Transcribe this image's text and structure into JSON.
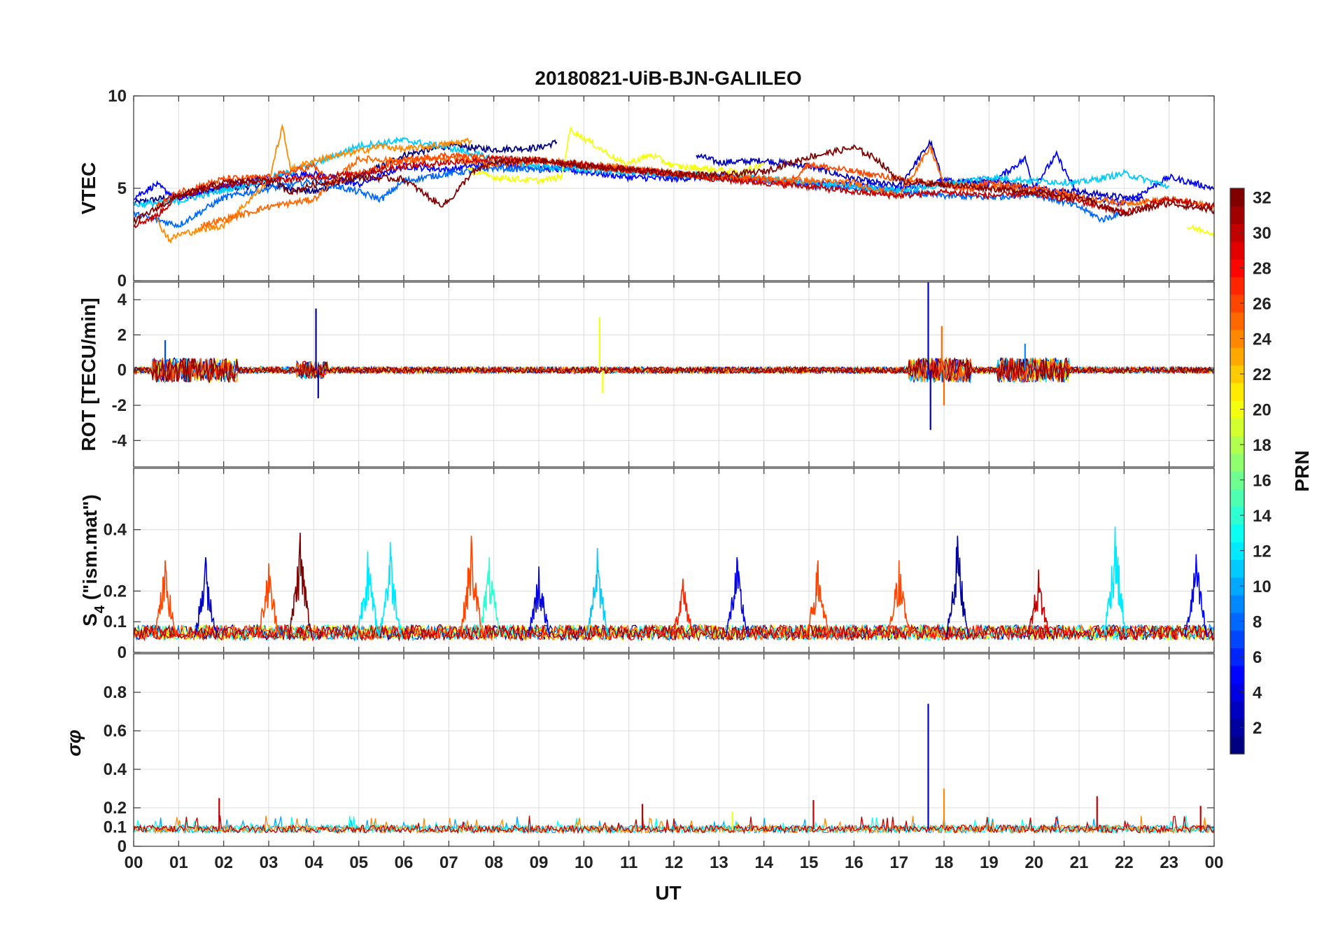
{
  "chart_data": {
    "type": "line",
    "title": "20180821-UiB-BJN-GALILEO",
    "xlabel": "UT",
    "xlim": [
      0,
      24
    ],
    "xticks": [
      "00",
      "01",
      "02",
      "03",
      "04",
      "05",
      "06",
      "07",
      "08",
      "09",
      "10",
      "11",
      "12",
      "13",
      "14",
      "15",
      "16",
      "17",
      "18",
      "19",
      "20",
      "21",
      "22",
      "23",
      "00"
    ],
    "panels": [
      {
        "id": "vtec",
        "ylabel": "VTEC",
        "ylim": [
          0,
          10
        ],
        "yticks": [
          "0",
          "5",
          "10"
        ],
        "ytick_values": [
          0,
          5,
          10
        ],
        "series": [
          {
            "prn": 1,
            "x": [
              0,
              1,
              2,
              3,
              4,
              5,
              6,
              7,
              8,
              9,
              9.4
            ],
            "y": [
              4.2,
              4.6,
              5,
              5.2,
              4.8,
              5.6,
              6.8,
              7.3,
              7.1,
              7.2,
              7.5
            ]
          },
          {
            "prn": 3,
            "x": [
              12.5,
              13,
              14,
              15,
              16,
              17,
              17.7,
              18,
              19,
              20,
              21,
              22,
              22.5
            ],
            "y": [
              6.8,
              6.4,
              6.5,
              6.2,
              5.5,
              5.1,
              7.5,
              5.2,
              5.5,
              5.0,
              4.8,
              4.5,
              4.4
            ]
          },
          {
            "prn": 5,
            "x": [
              0,
              0.5,
              1,
              2,
              3,
              4,
              5,
              6,
              7,
              8,
              9,
              10,
              11,
              12,
              13,
              14,
              15,
              16,
              17,
              18,
              19,
              19.8,
              20,
              20.5,
              21,
              22,
              23,
              24
            ],
            "y": [
              4.5,
              5.2,
              4.4,
              5.1,
              5.6,
              5.8,
              5.2,
              6.2,
              6.0,
              6.4,
              6.1,
              5.9,
              5.6,
              5.5,
              5.7,
              5.4,
              5.3,
              5.2,
              5.0,
              5.4,
              5.2,
              6.6,
              5.1,
              6.8,
              4.5,
              4.2,
              5.6,
              5.0
            ]
          },
          {
            "prn": 8,
            "x": [
              0,
              1,
              2,
              3,
              4,
              5,
              5.5,
              6,
              7,
              8,
              9,
              10,
              11,
              12,
              13,
              14,
              15,
              16,
              17,
              18,
              19,
              20,
              21,
              21.5,
              22
            ],
            "y": [
              3.6,
              3.0,
              4.5,
              5.0,
              5.4,
              4.8,
              4.4,
              5.4,
              5.8,
              6.1,
              6.0,
              6.2,
              5.9,
              5.7,
              5.6,
              5.4,
              5.2,
              5.0,
              4.8,
              4.6,
              4.5,
              4.7,
              4.0,
              3.3,
              3.7
            ]
          },
          {
            "prn": 11,
            "x": [
              0,
              1,
              2,
              3,
              4,
              5,
              6,
              7,
              8,
              9,
              10,
              11,
              12,
              13,
              14,
              15,
              16,
              17,
              18,
              19,
              20,
              21,
              22,
              23
            ],
            "y": [
              4.1,
              4.3,
              4.9,
              5.5,
              6.3,
              7.3,
              7.6,
              7.2,
              6.6,
              6.2,
              6.0,
              5.9,
              5.8,
              5.6,
              5.5,
              5.3,
              5.1,
              4.9,
              5.2,
              5.6,
              5.4,
              5.3,
              5.8,
              5.1
            ]
          },
          {
            "prn": 20,
            "x": [
              7.4,
              8,
              9,
              9.5,
              9.7,
              10.9,
              11.5,
              12,
              13,
              13.5,
              14
            ],
            "y": [
              6.0,
              5.6,
              5.4,
              5.6,
              8.2,
              6.3,
              6.8,
              6.2,
              6.0,
              5.8,
              6.4
            ]
          },
          {
            "prn": 20,
            "x": [
              23.4,
              24
            ],
            "y": [
              2.9,
              2.6
            ]
          },
          {
            "prn": 24,
            "x": [
              0.5,
              0.8,
              1,
              2,
              3,
              3.3,
              3.5,
              4,
              5,
              5.5,
              6,
              7,
              7.5
            ],
            "y": [
              3.3,
              2.2,
              2.5,
              3.0,
              5.4,
              8.3,
              6.0,
              6.5,
              7.0,
              7.3,
              7.1,
              7.4,
              7.6
            ]
          },
          {
            "prn": 25,
            "x": [
              1.5,
              2,
              3,
              4,
              4.5,
              5,
              6,
              7,
              8,
              9,
              10,
              11,
              12,
              13,
              14,
              15,
              16,
              17,
              17.7,
              18,
              19,
              20,
              21,
              22,
              23,
              24
            ],
            "y": [
              3.0,
              3.3,
              4.0,
              4.4,
              5.5,
              6.6,
              6.5,
              6.6,
              6.3,
              6.5,
              6.3,
              6.1,
              5.8,
              5.6,
              5.5,
              5.4,
              5.3,
              4.6,
              7.2,
              5.2,
              5.1,
              4.8,
              4.5,
              4.2,
              4.4,
              4.0
            ]
          },
          {
            "prn": 26,
            "x": [
              0.5,
              1,
              2,
              3,
              4,
              4.4,
              5,
              6,
              7,
              8,
              9,
              10,
              11,
              12,
              13,
              14,
              14.5,
              15,
              16,
              17,
              18,
              18.5,
              19,
              20,
              21
            ],
            "y": [
              4.0,
              4.8,
              5.5,
              5.6,
              6.2,
              5.2,
              5.8,
              6.5,
              6.8,
              6.6,
              6.5,
              6.2,
              6.0,
              5.8,
              5.6,
              5.5,
              5.2,
              6.3,
              5.9,
              5.5,
              5.2,
              4.9,
              5.3,
              5.0,
              4.7
            ]
          },
          {
            "prn": 30,
            "x": [
              0,
              0.5,
              1,
              2,
              3,
              4,
              5,
              6,
              7,
              8,
              9,
              10,
              11,
              12,
              13,
              14,
              15,
              16,
              17,
              18,
              19,
              20,
              21,
              22,
              23,
              24
            ],
            "y": [
              3.0,
              3.5,
              4.6,
              5.2,
              5.4,
              5.6,
              5.8,
              6.2,
              6.4,
              6.6,
              6.5,
              6.3,
              6.0,
              5.8,
              5.5,
              5.3,
              5.1,
              4.8,
              4.6,
              4.8,
              4.6,
              4.7,
              4.3,
              3.7,
              4.4,
              4.0
            ]
          },
          {
            "prn": 32,
            "x": [
              0,
              1,
              2,
              3,
              3.5,
              4,
              5,
              6,
              6.8,
              7,
              7.5,
              8,
              9,
              10,
              11,
              12,
              13,
              14,
              15,
              16,
              16.5,
              17,
              18,
              19,
              20,
              21,
              22,
              23,
              24
            ],
            "y": [
              3.2,
              4.6,
              5.3,
              5.5,
              4.8,
              5.2,
              5.6,
              5.5,
              4.1,
              4.3,
              5.8,
              6.4,
              6.5,
              6.2,
              6.0,
              5.8,
              5.7,
              5.9,
              6.7,
              7.2,
              6.6,
              5.4,
              5.2,
              5.0,
              4.8,
              4.5,
              3.6,
              4.2,
              3.8
            ]
          }
        ]
      },
      {
        "id": "rot",
        "ylabel": "ROT [TECU/min]",
        "ylim": [
          -5.5,
          5
        ],
        "yticks": [
          "-4",
          "-2",
          "0",
          "2",
          "4"
        ],
        "ytick_values": [
          -4,
          -2,
          0,
          2,
          4
        ],
        "noise_baseline": 0,
        "spikes": [
          {
            "prn": 2,
            "x": 4.05,
            "y": 3.5
          },
          {
            "prn": 2,
            "x": 4.1,
            "y": -1.6
          },
          {
            "prn": 20,
            "x": 10.35,
            "y": 3.0
          },
          {
            "prn": 20,
            "x": 10.42,
            "y": -1.3
          },
          {
            "prn": 3,
            "x": 17.65,
            "y": 5.0
          },
          {
            "prn": 3,
            "x": 17.7,
            "y": -3.4
          },
          {
            "prn": 25,
            "x": 17.95,
            "y": 2.5
          },
          {
            "prn": 25,
            "x": 18.0,
            "y": -2.0
          },
          {
            "prn": 7,
            "x": 0.7,
            "y": 1.7
          },
          {
            "prn": 9,
            "x": 19.8,
            "y": 1.5
          }
        ]
      },
      {
        "id": "s4",
        "ylabel_main": "S",
        "ylabel_sub": "4",
        "ylabel_rest": " (\"ism.mat\")",
        "ylim": [
          0,
          0.6
        ],
        "yticks": [
          "0",
          "0.1",
          "0.2",
          "0.4"
        ],
        "ytick_values": [
          0,
          0.1,
          0.2,
          0.4
        ],
        "peaks": [
          {
            "prn": 26,
            "x": 0.7,
            "y": 0.3
          },
          {
            "prn": 3,
            "x": 1.6,
            "y": 0.31
          },
          {
            "prn": 26,
            "x": 3.0,
            "y": 0.29
          },
          {
            "prn": 32,
            "x": 3.7,
            "y": 0.39
          },
          {
            "prn": 12,
            "x": 5.2,
            "y": 0.33
          },
          {
            "prn": 12,
            "x": 5.7,
            "y": 0.36
          },
          {
            "prn": 26,
            "x": 7.5,
            "y": 0.38
          },
          {
            "prn": 14,
            "x": 7.9,
            "y": 0.31
          },
          {
            "prn": 4,
            "x": 9.0,
            "y": 0.28
          },
          {
            "prn": 11,
            "x": 10.3,
            "y": 0.34
          },
          {
            "prn": 27,
            "x": 12.2,
            "y": 0.24
          },
          {
            "prn": 4,
            "x": 13.4,
            "y": 0.31
          },
          {
            "prn": 26,
            "x": 15.2,
            "y": 0.3
          },
          {
            "prn": 26,
            "x": 17.0,
            "y": 0.3
          },
          {
            "prn": 2,
            "x": 18.3,
            "y": 0.38
          },
          {
            "prn": 30,
            "x": 20.1,
            "y": 0.27
          },
          {
            "prn": 12,
            "x": 21.8,
            "y": 0.41
          },
          {
            "prn": 5,
            "x": 23.6,
            "y": 0.32
          }
        ]
      },
      {
        "id": "sigma",
        "ylabel": "σφ",
        "ylim": [
          0,
          1
        ],
        "yticks": [
          "0",
          "0.1",
          "0.2",
          "0.4",
          "0.6",
          "0.8"
        ],
        "ytick_values": [
          0,
          0.1,
          0.2,
          0.4,
          0.6,
          0.8
        ],
        "baseline": 0.09,
        "peaks": [
          {
            "prn": 3,
            "x": 17.65,
            "y": 0.74
          },
          {
            "prn": 30,
            "x": 1.9,
            "y": 0.25
          },
          {
            "prn": 30,
            "x": 11.3,
            "y": 0.22
          },
          {
            "prn": 30,
            "x": 15.1,
            "y": 0.24
          },
          {
            "prn": 24,
            "x": 18.0,
            "y": 0.3
          },
          {
            "prn": 30,
            "x": 21.4,
            "y": 0.26
          },
          {
            "prn": 30,
            "x": 23.7,
            "y": 0.21
          },
          {
            "prn": 20,
            "x": 13.3,
            "y": 0.18
          }
        ]
      }
    ],
    "colorbar": {
      "label": "PRN",
      "range": [
        1,
        32
      ],
      "ticks": [
        "2",
        "4",
        "6",
        "8",
        "10",
        "12",
        "14",
        "16",
        "18",
        "20",
        "22",
        "24",
        "26",
        "28",
        "30",
        "32"
      ],
      "tick_values": [
        2,
        4,
        6,
        8,
        10,
        12,
        14,
        16,
        18,
        20,
        22,
        24,
        26,
        28,
        30,
        32
      ]
    }
  }
}
